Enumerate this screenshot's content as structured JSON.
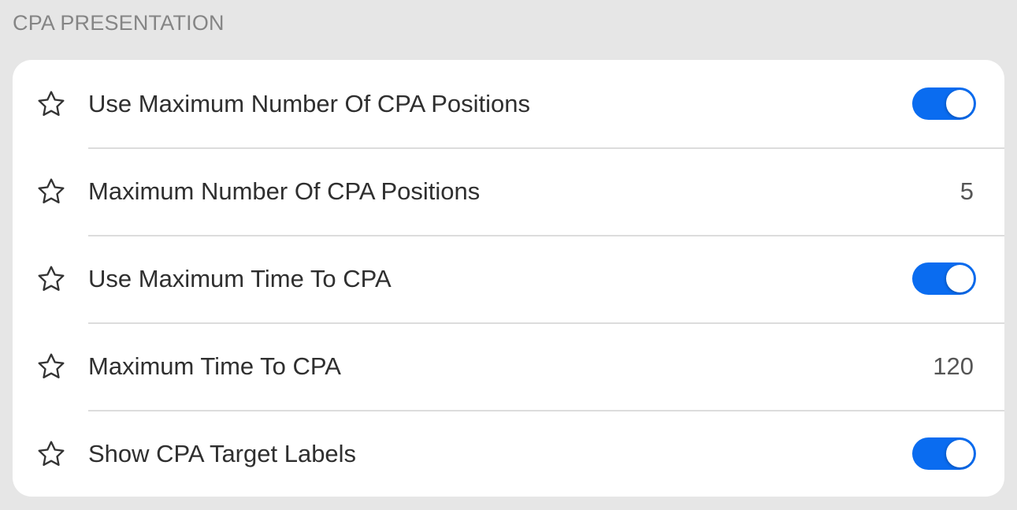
{
  "section": {
    "title": "CPA PRESENTATION"
  },
  "accent_color": "#0a6cf0",
  "rows": [
    {
      "label": "Use Maximum Number Of CPA Positions",
      "type": "toggle",
      "on": true,
      "icon": "star-outline-icon"
    },
    {
      "label": "Maximum Number Of CPA Positions",
      "type": "value",
      "value": "5",
      "icon": "star-outline-icon"
    },
    {
      "label": "Use Maximum Time To CPA",
      "type": "toggle",
      "on": true,
      "icon": "star-outline-icon"
    },
    {
      "label": "Maximum Time To CPA",
      "type": "value",
      "value": "120",
      "icon": "star-outline-icon"
    },
    {
      "label": "Show CPA Target Labels",
      "type": "toggle",
      "on": true,
      "icon": "star-outline-icon"
    }
  ]
}
